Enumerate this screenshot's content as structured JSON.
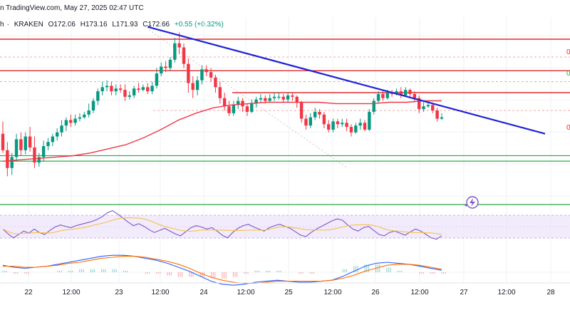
{
  "header": {
    "title": "n TradingView.com, May 27, 2025 02:47 UTC",
    "symbol": "h",
    "exchange": "KRAKEN",
    "open": "O172.06",
    "high": "H173.16",
    "low": "L171.93",
    "close": "C172.66",
    "change": "+0.55 (+0.32%)"
  },
  "colors": {
    "up": "#089981",
    "down": "#f23645",
    "trendline": "#1e22d6",
    "ma": "#f23645",
    "resistance": "#e52a2a",
    "support": "#27a845",
    "rsi": "#7e57c2",
    "rsi_ma": "#f6c346",
    "macd": "#2962ff",
    "signal": "#ff6d00"
  },
  "chart_data": {
    "type": "candlestick",
    "x_ticks": [
      "22",
      "12:00",
      "23",
      "12:00",
      "24",
      "12:00",
      "25",
      "12:00",
      "26",
      "12:00",
      "27",
      "12:00",
      "28"
    ],
    "right_labels": [
      "0",
      "0",
      "0"
    ],
    "candles": [
      [
        188,
        176,
        197,
        174
      ],
      [
        176,
        163,
        182,
        157
      ],
      [
        163,
        171,
        174,
        158
      ],
      [
        171,
        184,
        188,
        168
      ],
      [
        184,
        176,
        189,
        172
      ],
      [
        176,
        186,
        189,
        173
      ],
      [
        186,
        178,
        193,
        175
      ],
      [
        178,
        167,
        186,
        163
      ],
      [
        167,
        171,
        174,
        164
      ],
      [
        171,
        179,
        183,
        168
      ],
      [
        179,
        182,
        185,
        176
      ],
      [
        182,
        186,
        188,
        179
      ],
      [
        186,
        189,
        192,
        183
      ],
      [
        189,
        194,
        198,
        186
      ],
      [
        194,
        198,
        200,
        190
      ],
      [
        198,
        196,
        202,
        193
      ],
      [
        196,
        199,
        202,
        194
      ],
      [
        199,
        200,
        203,
        197
      ],
      [
        200,
        202,
        204,
        199
      ],
      [
        202,
        205,
        210,
        200
      ],
      [
        205,
        212,
        214,
        203
      ],
      [
        212,
        219,
        221,
        209
      ],
      [
        219,
        222,
        226,
        216
      ],
      [
        222,
        223,
        227,
        219
      ],
      [
        223,
        219,
        226,
        216
      ],
      [
        219,
        221,
        224,
        216
      ],
      [
        221,
        220,
        224,
        218
      ],
      [
        220,
        215,
        224,
        212
      ],
      [
        215,
        216,
        219,
        213
      ],
      [
        216,
        221,
        223,
        214
      ],
      [
        221,
        220,
        225,
        218
      ],
      [
        220,
        222,
        224,
        219
      ],
      [
        222,
        219,
        225,
        217
      ],
      [
        219,
        223,
        226,
        217
      ],
      [
        223,
        232,
        236,
        221
      ],
      [
        232,
        237,
        240,
        230
      ],
      [
        237,
        236,
        241,
        233
      ],
      [
        236,
        242,
        244,
        234
      ],
      [
        242,
        254,
        258,
        240
      ],
      [
        254,
        251,
        262,
        246
      ],
      [
        251,
        239,
        254,
        236
      ],
      [
        239,
        225,
        243,
        218
      ],
      [
        225,
        220,
        230,
        214
      ],
      [
        220,
        227,
        230,
        216
      ],
      [
        227,
        235,
        238,
        224
      ],
      [
        235,
        233,
        238,
        230
      ],
      [
        233,
        229,
        236,
        226
      ],
      [
        229,
        222,
        231,
        218
      ],
      [
        222,
        214,
        226,
        210
      ],
      [
        214,
        208,
        218,
        205
      ],
      [
        208,
        203,
        212,
        201
      ],
      [
        203,
        209,
        212,
        201
      ],
      [
        209,
        212,
        215,
        206
      ],
      [
        212,
        208,
        214,
        204
      ],
      [
        208,
        204,
        210,
        201
      ],
      [
        204,
        210,
        213,
        203
      ],
      [
        210,
        213,
        215,
        207
      ],
      [
        213,
        214,
        217,
        211
      ],
      [
        214,
        212,
        216,
        210
      ],
      [
        212,
        214,
        217,
        211
      ],
      [
        214,
        215,
        218,
        212
      ],
      [
        215,
        215,
        218,
        213
      ],
      [
        215,
        213,
        217,
        211
      ],
      [
        213,
        216,
        218,
        211
      ],
      [
        216,
        215,
        218,
        212
      ],
      [
        215,
        211,
        216,
        207
      ],
      [
        211,
        199,
        212,
        196
      ],
      [
        199,
        194,
        202,
        191
      ],
      [
        194,
        200,
        203,
        192
      ],
      [
        200,
        204,
        207,
        198
      ],
      [
        204,
        202,
        206,
        199
      ],
      [
        202,
        195,
        204,
        192
      ],
      [
        195,
        191,
        198,
        189
      ],
      [
        191,
        197,
        199,
        189
      ],
      [
        197,
        195,
        199,
        192
      ],
      [
        195,
        196,
        199,
        193
      ],
      [
        196,
        193,
        199,
        190
      ],
      [
        193,
        189,
        195,
        186
      ],
      [
        189,
        194,
        196,
        188
      ],
      [
        194,
        196,
        199,
        191
      ],
      [
        196,
        191,
        198,
        190
      ],
      [
        191,
        204,
        206,
        190
      ],
      [
        204,
        212,
        214,
        202
      ],
      [
        212,
        217,
        219,
        210
      ],
      [
        217,
        214,
        219,
        212
      ],
      [
        214,
        218,
        220,
        213
      ],
      [
        218,
        217,
        220,
        215
      ],
      [
        217,
        219,
        221,
        216
      ],
      [
        219,
        216,
        222,
        214
      ],
      [
        216,
        220,
        222,
        215
      ],
      [
        220,
        217,
        221,
        215
      ],
      [
        217,
        214,
        219,
        211
      ],
      [
        214,
        206,
        216,
        203
      ],
      [
        206,
        208,
        211,
        204
      ],
      [
        208,
        209,
        211,
        207
      ],
      [
        209,
        205,
        210,
        203
      ],
      [
        205,
        199,
        207,
        197
      ],
      [
        199,
        200,
        203,
        198
      ]
    ],
    "ma_series": [
      168,
      169,
      170,
      171,
      172,
      174,
      177,
      180,
      185,
      191,
      198,
      203,
      207,
      209,
      210,
      211,
      211,
      211,
      211,
      210,
      210,
      210,
      211,
      211,
      212,
      212
    ],
    "trendline": {
      "from": [
        38,
        251
      ],
      "to": [
        109,
        206
      ]
    },
    "resistance_levels": [
      257,
      234,
      218
    ],
    "support_levels": [
      172,
      168
    ],
    "rsi_series": [
      55,
      48,
      42,
      47,
      52,
      49,
      55,
      50,
      47,
      53,
      58,
      61,
      59,
      57,
      60,
      62,
      64,
      66,
      69,
      73,
      79,
      82,
      77,
      71,
      65,
      60,
      63,
      59,
      54,
      50,
      53,
      56,
      52,
      48,
      45,
      51,
      57,
      60,
      58,
      55,
      57,
      52,
      46,
      42,
      50,
      56,
      60,
      62,
      58,
      55,
      52,
      57,
      60,
      62,
      59,
      56,
      51,
      46,
      44,
      50,
      55,
      59,
      63,
      67,
      70,
      68,
      61,
      55,
      52,
      57,
      59,
      53,
      47,
      45,
      50,
      52,
      49,
      46,
      51,
      55,
      52,
      47,
      42,
      40,
      45
    ],
    "macd_series": [
      0.7,
      0.5,
      0.4,
      0.5,
      0.6,
      0.8,
      1.0,
      1.2,
      1.4,
      1.6,
      1.7,
      1.7,
      1.6,
      1.4,
      1.2,
      0.9,
      0.5,
      0.1,
      -0.4,
      -0.9,
      -1.2,
      -1.3,
      -1.2,
      -1.0,
      -0.9,
      -0.8,
      -0.9,
      -1.0,
      -1.0,
      -0.9,
      -0.8,
      -0.4,
      0.1,
      0.6,
      0.9,
      1.0,
      0.9,
      0.8,
      0.6,
      0.4,
      0.2
    ],
    "signal_series": [
      0.6,
      0.6,
      0.5,
      0.5,
      0.6,
      0.7,
      0.9,
      1.0,
      1.2,
      1.4,
      1.5,
      1.6,
      1.6,
      1.5,
      1.3,
      1.1,
      0.8,
      0.4,
      -0.1,
      -0.5,
      -0.8,
      -1.0,
      -1.1,
      -1.1,
      -1.0,
      -0.9,
      -0.9,
      -0.9,
      -0.9,
      -0.9,
      -0.8,
      -0.6,
      -0.3,
      0.1,
      0.4,
      0.7,
      0.8,
      0.8,
      0.7,
      0.5,
      0.3
    ]
  }
}
